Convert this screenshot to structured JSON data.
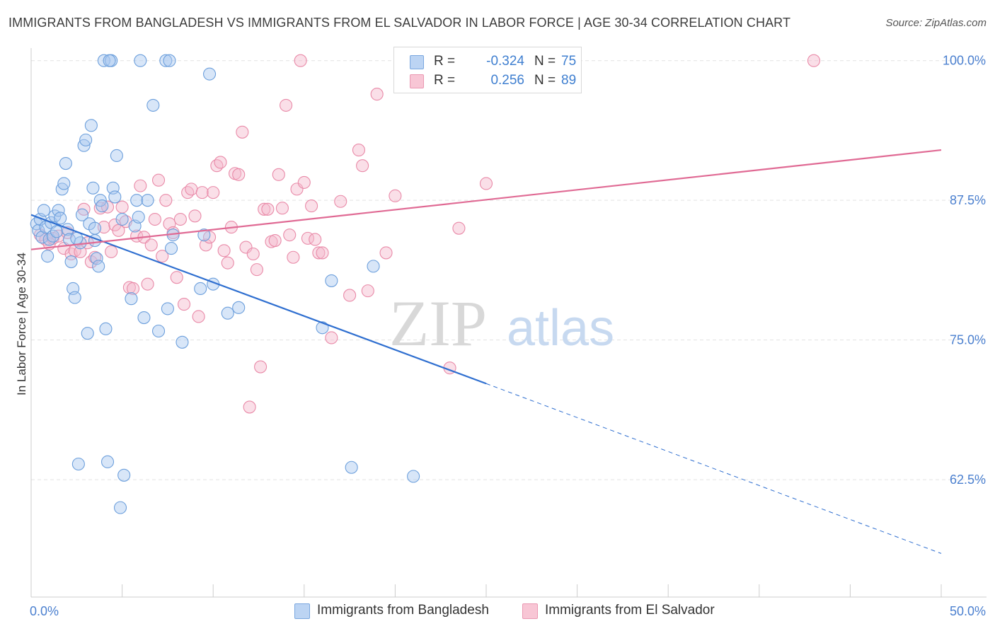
{
  "title": "IMMIGRANTS FROM BANGLADESH VS IMMIGRANTS FROM EL SALVADOR IN LABOR FORCE | AGE 30-34 CORRELATION CHART",
  "source": "Source: ZipAtlas.com",
  "watermark": {
    "zip": "ZIP",
    "atlas": "atlas"
  },
  "colors": {
    "blue_fill": "#a9c8f0",
    "blue_stroke": "#6c9fdc",
    "blue_line": "#2f6fd0",
    "pink_fill": "#f5b8cb",
    "pink_stroke": "#e98aa8",
    "pink_line": "#e06a94",
    "tick_label": "#4a7fcf",
    "grid": "#e3e3e3"
  },
  "legend": {
    "rows": [
      {
        "swatch": "blue",
        "r_label": "R =",
        "r_value": "-0.324",
        "n_label": "N =",
        "n_value": "75"
      },
      {
        "swatch": "pink",
        "r_label": "R =",
        "r_value": "0.256",
        "n_label": "N =",
        "n_value": "89"
      }
    ]
  },
  "bottom_legend": [
    {
      "swatch": "blue",
      "label": "Immigrants from Bangladesh"
    },
    {
      "swatch": "pink",
      "label": "Immigrants from El Salvador"
    }
  ],
  "chart_data": {
    "type": "scatter",
    "title": "IMMIGRANTS FROM BANGLADESH VS IMMIGRANTS FROM EL SALVADOR IN LABOR FORCE | AGE 30-34 CORRELATION CHART",
    "xlabel": "",
    "ylabel": "In Labor Force | Age 30-34",
    "xlim": [
      0,
      50
    ],
    "ylim": [
      52,
      101.5
    ],
    "x_tick_labels": [
      "0.0%",
      "50.0%"
    ],
    "y_ticks": [
      62.5,
      75.0,
      87.5,
      100.0
    ],
    "y_tick_labels": [
      "62.5%",
      "75.0%",
      "87.5%",
      "100.0%"
    ],
    "grid": true,
    "legend_position": "top-center",
    "series": [
      {
        "name": "Immigrants from Bangladesh",
        "color": "blue",
        "points": [
          [
            0.3,
            85.4
          ],
          [
            0.4,
            84.8
          ],
          [
            0.5,
            85.8
          ],
          [
            0.6,
            84.2
          ],
          [
            0.7,
            86.6
          ],
          [
            0.8,
            85.1
          ],
          [
            0.9,
            82.5
          ],
          [
            1.0,
            84.0
          ],
          [
            1.1,
            85.5
          ],
          [
            1.2,
            84.3
          ],
          [
            1.3,
            86.1
          ],
          [
            1.5,
            86.6
          ],
          [
            1.6,
            85.9
          ],
          [
            1.4,
            84.7
          ],
          [
            1.7,
            88.5
          ],
          [
            1.8,
            89.0
          ],
          [
            1.9,
            90.8
          ],
          [
            2.0,
            84.9
          ],
          [
            2.1,
            84.0
          ],
          [
            2.2,
            82.0
          ],
          [
            2.3,
            79.6
          ],
          [
            2.4,
            78.8
          ],
          [
            2.6,
            63.9
          ],
          [
            2.7,
            83.7
          ],
          [
            2.8,
            86.2
          ],
          [
            2.9,
            92.4
          ],
          [
            3.0,
            92.9
          ],
          [
            3.1,
            75.6
          ],
          [
            3.2,
            85.4
          ],
          [
            3.3,
            94.2
          ],
          [
            3.4,
            88.6
          ],
          [
            3.5,
            83.9
          ],
          [
            3.6,
            82.3
          ],
          [
            3.7,
            81.6
          ],
          [
            3.8,
            87.5
          ],
          [
            3.9,
            87.0
          ],
          [
            4.0,
            100.0
          ],
          [
            4.1,
            76.0
          ],
          [
            4.2,
            64.1
          ],
          [
            4.4,
            100.0
          ],
          [
            4.5,
            88.6
          ],
          [
            4.6,
            87.8
          ],
          [
            4.7,
            91.5
          ],
          [
            4.9,
            60.0
          ],
          [
            5.0,
            85.8
          ],
          [
            5.1,
            62.9
          ],
          [
            5.5,
            78.7
          ],
          [
            5.8,
            87.5
          ],
          [
            6.0,
            100.0
          ],
          [
            5.7,
            85.2
          ],
          [
            5.9,
            86.0
          ],
          [
            6.2,
            77.0
          ],
          [
            6.4,
            87.5
          ],
          [
            6.7,
            96.0
          ],
          [
            7.0,
            75.8
          ],
          [
            7.4,
            100.0
          ],
          [
            7.6,
            100.0
          ],
          [
            7.7,
            83.2
          ],
          [
            7.8,
            84.4
          ],
          [
            7.5,
            77.8
          ],
          [
            8.3,
            74.8
          ],
          [
            9.3,
            79.6
          ],
          [
            9.5,
            84.4
          ],
          [
            9.8,
            98.8
          ],
          [
            10.0,
            80.0
          ],
          [
            10.8,
            77.4
          ],
          [
            11.4,
            77.9
          ],
          [
            16.0,
            76.1
          ],
          [
            16.5,
            80.3
          ],
          [
            17.6,
            63.6
          ],
          [
            18.8,
            81.6
          ],
          [
            21.0,
            62.8
          ],
          [
            4.3,
            100.0
          ],
          [
            3.5,
            85.0
          ],
          [
            2.5,
            84.1
          ]
        ]
      },
      {
        "name": "Immigrants from El Salvador",
        "color": "pink",
        "points": [
          [
            0.5,
            84.4
          ],
          [
            0.8,
            84.0
          ],
          [
            1.0,
            83.6
          ],
          [
            1.2,
            84.1
          ],
          [
            1.5,
            84.3
          ],
          [
            1.8,
            83.2
          ],
          [
            2.0,
            84.6
          ],
          [
            2.2,
            82.7
          ],
          [
            2.4,
            83.0
          ],
          [
            2.7,
            82.9
          ],
          [
            2.9,
            86.7
          ],
          [
            3.1,
            83.7
          ],
          [
            3.3,
            82.0
          ],
          [
            3.5,
            82.4
          ],
          [
            3.8,
            86.8
          ],
          [
            4.0,
            85.1
          ],
          [
            4.2,
            86.9
          ],
          [
            4.4,
            82.9
          ],
          [
            4.6,
            85.3
          ],
          [
            4.8,
            84.8
          ],
          [
            5.0,
            86.9
          ],
          [
            5.2,
            85.6
          ],
          [
            5.4,
            79.7
          ],
          [
            5.6,
            79.6
          ],
          [
            5.8,
            84.3
          ],
          [
            6.0,
            88.8
          ],
          [
            6.2,
            84.2
          ],
          [
            6.4,
            80.0
          ],
          [
            6.6,
            83.5
          ],
          [
            6.8,
            85.8
          ],
          [
            7.0,
            89.3
          ],
          [
            7.2,
            82.5
          ],
          [
            7.4,
            87.5
          ],
          [
            7.6,
            85.4
          ],
          [
            7.8,
            84.6
          ],
          [
            8.0,
            80.6
          ],
          [
            8.2,
            85.8
          ],
          [
            8.4,
            78.2
          ],
          [
            8.6,
            88.2
          ],
          [
            8.8,
            88.5
          ],
          [
            9.0,
            86.1
          ],
          [
            9.2,
            77.1
          ],
          [
            9.4,
            88.2
          ],
          [
            9.6,
            83.5
          ],
          [
            9.8,
            84.2
          ],
          [
            10.0,
            88.2
          ],
          [
            10.2,
            90.6
          ],
          [
            10.4,
            90.9
          ],
          [
            10.6,
            83.0
          ],
          [
            10.8,
            81.9
          ],
          [
            11.0,
            85.1
          ],
          [
            11.2,
            89.9
          ],
          [
            11.4,
            89.8
          ],
          [
            11.6,
            93.6
          ],
          [
            11.8,
            83.3
          ],
          [
            12.0,
            69.0
          ],
          [
            12.2,
            82.7
          ],
          [
            12.4,
            81.3
          ],
          [
            12.6,
            72.6
          ],
          [
            12.8,
            86.7
          ],
          [
            13.0,
            86.7
          ],
          [
            13.2,
            83.8
          ],
          [
            13.4,
            83.9
          ],
          [
            13.6,
            89.8
          ],
          [
            13.8,
            86.8
          ],
          [
            14.0,
            96.0
          ],
          [
            14.2,
            84.4
          ],
          [
            14.4,
            82.4
          ],
          [
            14.6,
            88.5
          ],
          [
            14.8,
            100.0
          ],
          [
            15.0,
            89.1
          ],
          [
            15.2,
            84.1
          ],
          [
            15.4,
            87.0
          ],
          [
            15.6,
            84.0
          ],
          [
            15.8,
            82.8
          ],
          [
            16.0,
            82.8
          ],
          [
            16.5,
            75.2
          ],
          [
            17.0,
            87.4
          ],
          [
            17.5,
            79.0
          ],
          [
            18.0,
            92.0
          ],
          [
            18.2,
            90.6
          ],
          [
            18.5,
            79.4
          ],
          [
            19.0,
            97.0
          ],
          [
            19.5,
            82.8
          ],
          [
            20.0,
            87.9
          ],
          [
            23.0,
            72.5
          ],
          [
            23.5,
            85.0
          ],
          [
            25.0,
            89.0
          ],
          [
            43.0,
            100.0
          ]
        ]
      }
    ],
    "trend_lines": [
      {
        "series": "Immigrants from Bangladesh",
        "solid": [
          [
            0,
            86.2
          ],
          [
            25,
            71.1
          ]
        ],
        "dashed": [
          [
            25,
            71.1
          ],
          [
            50,
            55.9
          ]
        ]
      },
      {
        "series": "Immigrants from El Salvador",
        "solid": [
          [
            0,
            83.1
          ],
          [
            50,
            92.0
          ]
        ]
      }
    ]
  }
}
